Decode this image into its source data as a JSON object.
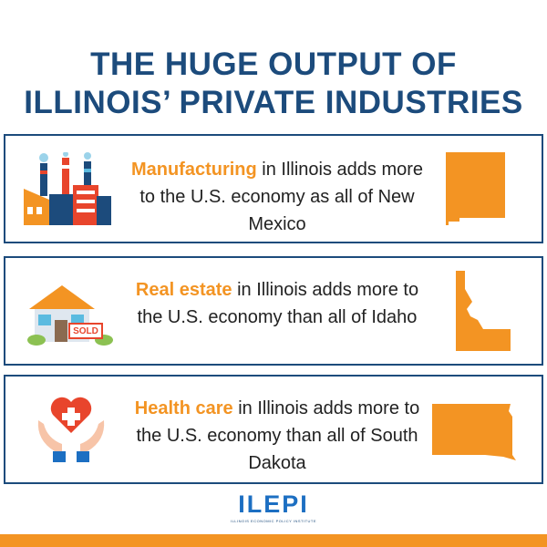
{
  "header": {
    "title_lines": [
      "THE HUGE OUTPUT OF",
      "ILLINOIS’ PRIVATE INDUSTRIES"
    ]
  },
  "cards": [
    {
      "highlight": "Manufacturing",
      "text": "in Illinois adds more to the U.S. economy as all of New Mexico"
    },
    {
      "highlight": "Real estate",
      "text": "in Illinois adds more to the U.S. economy than all of Idaho",
      "sign": "SOLD"
    },
    {
      "highlight": "Health care",
      "text": "in Illinois adds more to the U.S. economy than all of South Dakota"
    }
  ],
  "logo": {
    "name": "ILEPI",
    "tagline": "ILLINOIS ECONOMIC POLICY INSTITUTE"
  }
}
